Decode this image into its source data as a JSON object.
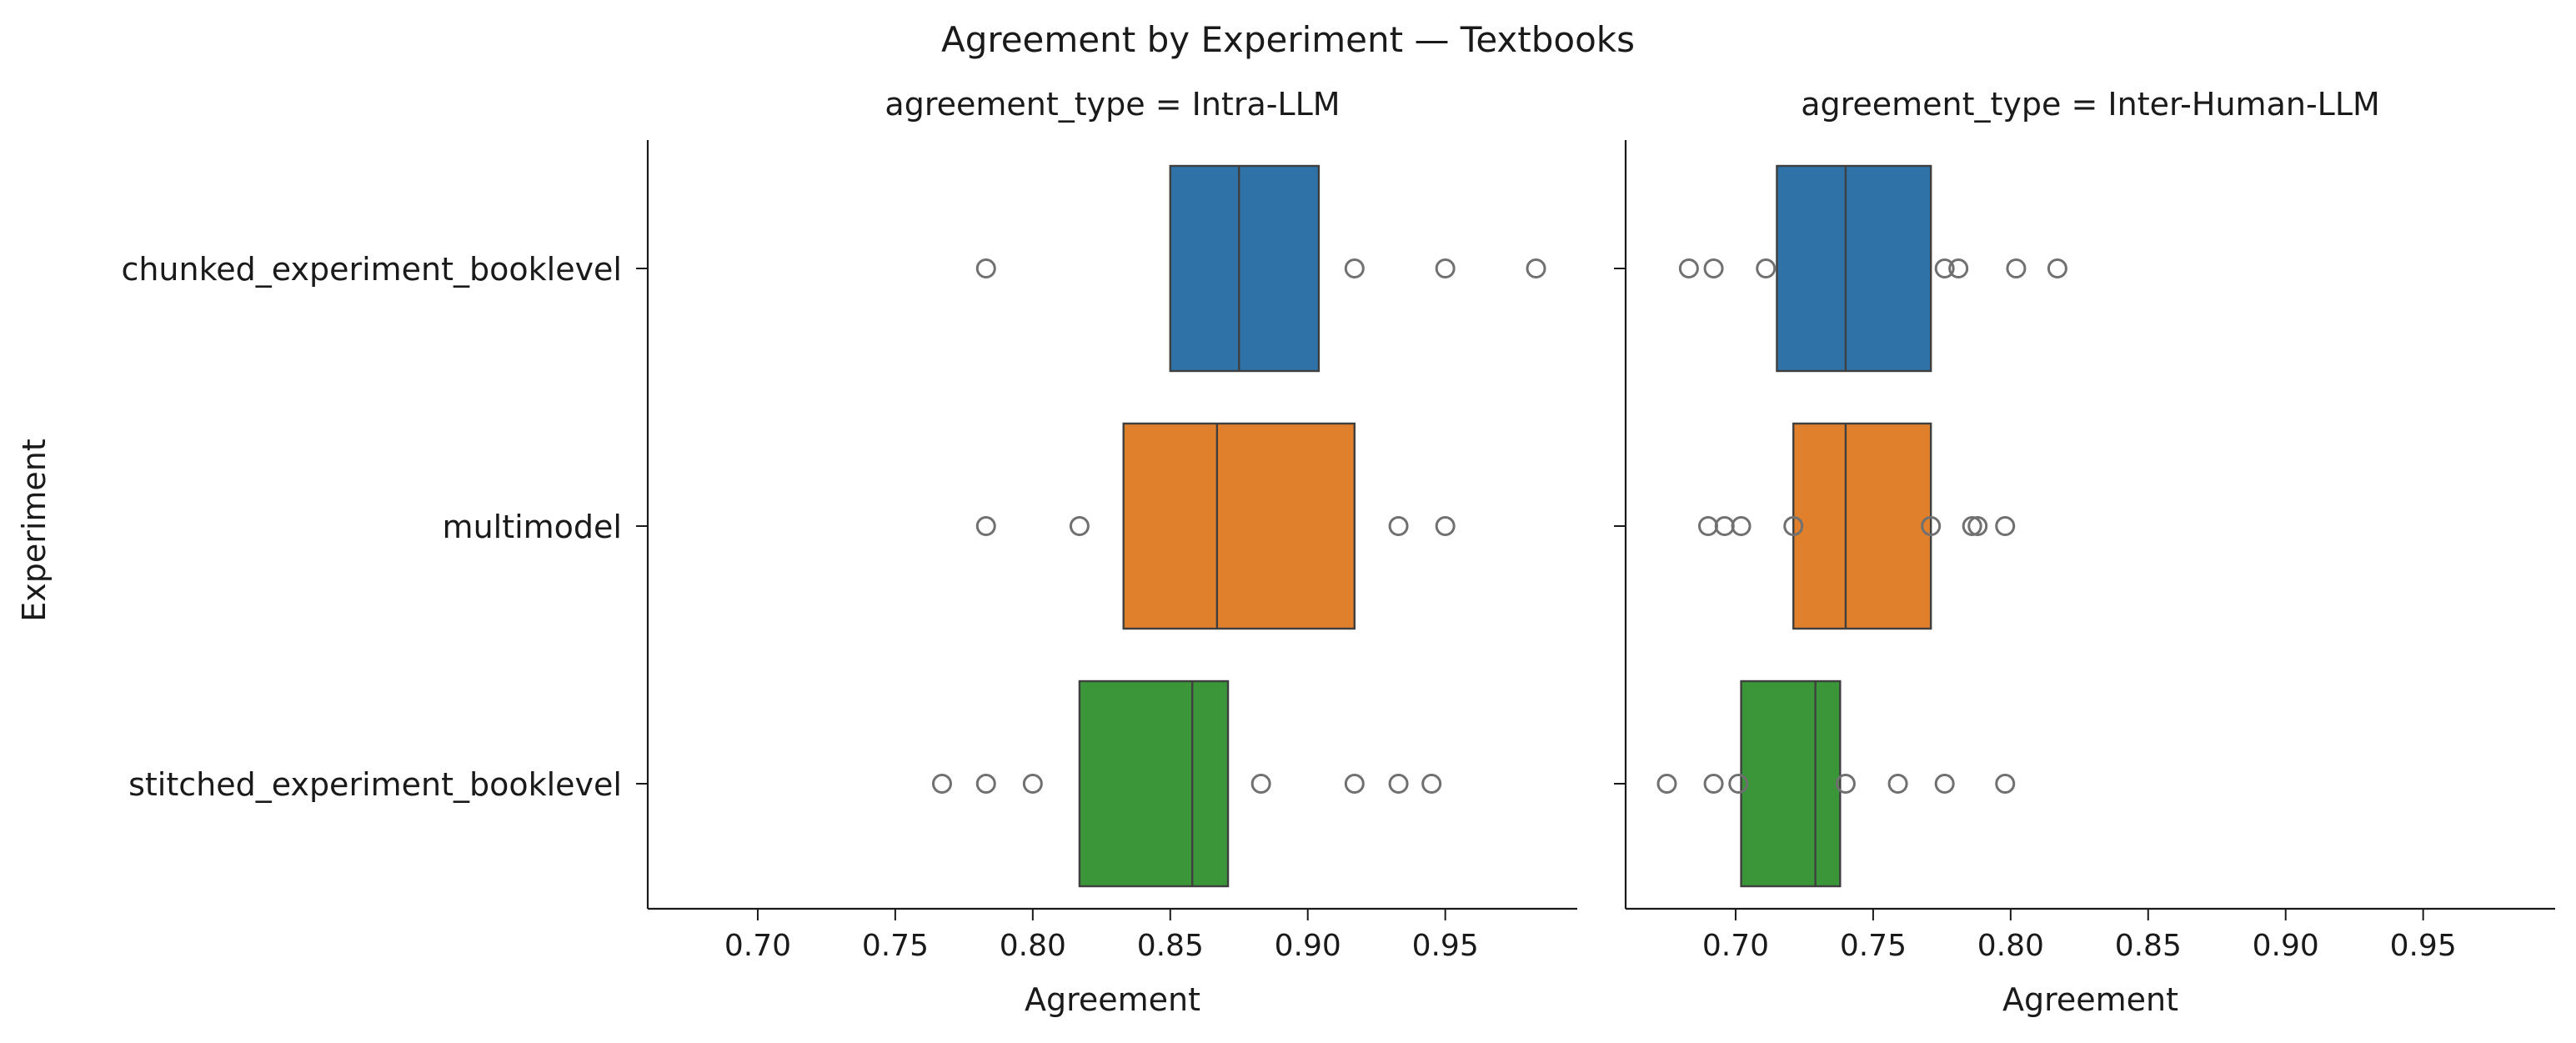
{
  "chart_data": {
    "title": "Agreement by Experiment — Textbooks",
    "type": "boxplot",
    "orientation": "horizontal",
    "ylabel": "Experiment",
    "categories": [
      "chunked_experiment_booklevel",
      "multimodel",
      "stitched_experiment_booklevel"
    ],
    "colors": [
      "#2e72a8",
      "#e0802c",
      "#3a9639"
    ],
    "grid": false,
    "panels": [
      {
        "title": "agreement_type = Intra-LLM",
        "xlabel": "Agreement",
        "xlim": [
          0.66,
          0.998
        ],
        "xticks": [
          0.7,
          0.75,
          0.8,
          0.85,
          0.9,
          0.95
        ],
        "boxes": [
          {
            "category": "chunked_experiment_booklevel",
            "q1": 0.85,
            "median": 0.875,
            "q3": 0.904,
            "outliers": [
              0.783,
              0.917,
              0.95,
              0.983
            ]
          },
          {
            "category": "multimodel",
            "q1": 0.833,
            "median": 0.867,
            "q3": 0.917,
            "outliers": [
              0.783,
              0.817,
              0.933,
              0.95
            ]
          },
          {
            "category": "stitched_experiment_booklevel",
            "q1": 0.817,
            "median": 0.858,
            "q3": 0.871,
            "outliers": [
              0.767,
              0.783,
              0.8,
              0.883,
              0.917,
              0.933,
              0.945
            ]
          }
        ]
      },
      {
        "title": "agreement_type = Inter-Human-LLM",
        "xlabel": "Agreement",
        "xlim": [
          0.66,
          0.998
        ],
        "xticks": [
          0.7,
          0.75,
          0.8,
          0.85,
          0.9,
          0.95
        ],
        "boxes": [
          {
            "category": "chunked_experiment_booklevel",
            "q1": 0.715,
            "median": 0.74,
            "q3": 0.771,
            "outliers": [
              0.683,
              0.692,
              0.711,
              0.776,
              0.781,
              0.802,
              0.817
            ]
          },
          {
            "category": "multimodel",
            "q1": 0.721,
            "median": 0.74,
            "q3": 0.771,
            "outliers": [
              0.69,
              0.696,
              0.702,
              0.721,
              0.771,
              0.786,
              0.788,
              0.798
            ]
          },
          {
            "category": "stitched_experiment_booklevel",
            "q1": 0.702,
            "median": 0.729,
            "q3": 0.738,
            "outliers": [
              0.675,
              0.692,
              0.701,
              0.74,
              0.759,
              0.776,
              0.798
            ]
          }
        ]
      }
    ]
  }
}
